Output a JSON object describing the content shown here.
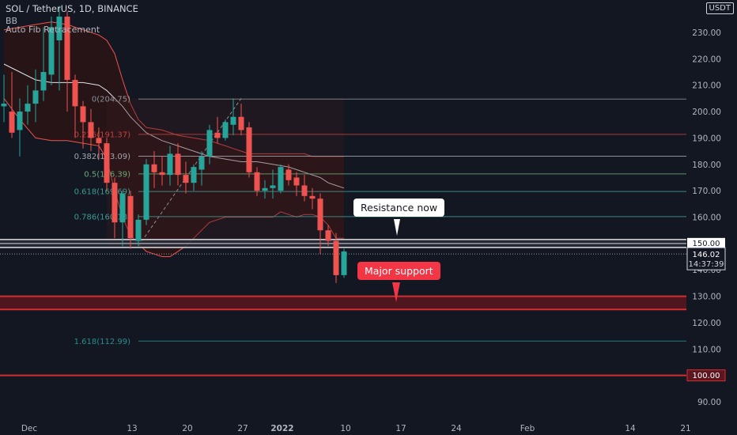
{
  "header": {
    "symbol": "SOL / TetherUS, 1D, BINANCE",
    "indicator_1": "BB",
    "indicator_2": "Auto Fib Retracement"
  },
  "currency_badge": "USDT",
  "callouts": {
    "resistance": "Resistance now",
    "support": "Major support"
  },
  "price_labels": {
    "resistance_level": "150.00",
    "current_price": "146.02",
    "countdown": "14:37:39",
    "support_level": "100.00"
  },
  "colors": {
    "background": "#131722",
    "up": "#26a69a",
    "down": "#ef5350",
    "band_fill": "#2a1416",
    "band_line": "#ef5350",
    "basis": "#e0e3eb",
    "support_zone": "#5c1620",
    "support_line": "#d32f2f",
    "callout_red": "#f23645"
  },
  "chart_data": {
    "type": "candlestick",
    "y_axis": {
      "range": [
        83,
        236
      ],
      "ticks": [
        90,
        100,
        110,
        120,
        130,
        140,
        150,
        160,
        170,
        180,
        190,
        200,
        210,
        220,
        230
      ],
      "tick_labels": [
        "90.00",
        "",
        "110.00",
        "120.00",
        "130.00",
        "140.00",
        "",
        "160.00",
        "170.00",
        "180.00",
        "190.00",
        "200.00",
        "210.00",
        "220.00",
        "230.00"
      ]
    },
    "x_axis": {
      "ticks": [
        {
          "day": -1,
          "label": "Dec",
          "bold": false
        },
        {
          "day": 12,
          "label": "13",
          "bold": false
        },
        {
          "day": 19,
          "label": "20",
          "bold": false
        },
        {
          "day": 26,
          "label": "27",
          "bold": false
        },
        {
          "day": 31,
          "label": "2022",
          "bold": true
        },
        {
          "day": 39,
          "label": "10",
          "bold": false
        },
        {
          "day": 46,
          "label": "17",
          "bold": false
        },
        {
          "day": 53,
          "label": "24",
          "bold": false
        },
        {
          "day": 62,
          "label": "Feb",
          "bold": false
        },
        {
          "day": 75,
          "label": "14",
          "bold": false
        },
        {
          "day": 82,
          "label": "21",
          "bold": false
        }
      ],
      "range": [
        -4,
        84
      ]
    },
    "candles": [
      {
        "day": -4,
        "o": 202,
        "h": 214,
        "l": 196,
        "c": 203
      },
      {
        "day": -3,
        "o": 200,
        "h": 215,
        "l": 190,
        "c": 192
      },
      {
        "day": -2,
        "o": 193,
        "h": 205,
        "l": 183,
        "c": 200
      },
      {
        "day": -1,
        "o": 200,
        "h": 210,
        "l": 195,
        "c": 203
      },
      {
        "day": 0,
        "o": 203,
        "h": 216,
        "l": 196,
        "c": 208
      },
      {
        "day": 1,
        "o": 208,
        "h": 232,
        "l": 204,
        "c": 215
      },
      {
        "day": 2,
        "o": 214,
        "h": 236,
        "l": 210,
        "c": 232
      },
      {
        "day": 3,
        "o": 227,
        "h": 240,
        "l": 208,
        "c": 236
      },
      {
        "day": 4,
        "o": 236,
        "h": 238,
        "l": 200,
        "c": 212
      },
      {
        "day": 5,
        "o": 212,
        "h": 214,
        "l": 190,
        "c": 202
      },
      {
        "day": 6,
        "o": 202,
        "h": 204,
        "l": 186,
        "c": 196
      },
      {
        "day": 7,
        "o": 196,
        "h": 201,
        "l": 185,
        "c": 190
      },
      {
        "day": 8,
        "o": 190,
        "h": 194,
        "l": 182,
        "c": 188
      },
      {
        "day": 9,
        "o": 188,
        "h": 190,
        "l": 170,
        "c": 173
      },
      {
        "day": 10,
        "o": 173,
        "h": 175,
        "l": 152,
        "c": 158
      },
      {
        "day": 11,
        "o": 158,
        "h": 170,
        "l": 149,
        "c": 169
      },
      {
        "day": 12,
        "o": 168,
        "h": 170,
        "l": 148,
        "c": 152
      },
      {
        "day": 13,
        "o": 151,
        "h": 161,
        "l": 149,
        "c": 159
      },
      {
        "day": 14,
        "o": 159,
        "h": 182,
        "l": 157,
        "c": 180
      },
      {
        "day": 15,
        "o": 180,
        "h": 185,
        "l": 171,
        "c": 177
      },
      {
        "day": 16,
        "o": 177,
        "h": 183,
        "l": 172,
        "c": 176
      },
      {
        "day": 17,
        "o": 176,
        "h": 187,
        "l": 172,
        "c": 184
      },
      {
        "day": 18,
        "o": 184,
        "h": 188,
        "l": 172,
        "c": 176
      },
      {
        "day": 19,
        "o": 176,
        "h": 181,
        "l": 169,
        "c": 173
      },
      {
        "day": 20,
        "o": 173,
        "h": 180,
        "l": 170,
        "c": 179
      },
      {
        "day": 21,
        "o": 178,
        "h": 185,
        "l": 172,
        "c": 183
      },
      {
        "day": 22,
        "o": 183,
        "h": 195,
        "l": 180,
        "c": 193
      },
      {
        "day": 23,
        "o": 192,
        "h": 198,
        "l": 188,
        "c": 190
      },
      {
        "day": 24,
        "o": 190,
        "h": 197,
        "l": 189,
        "c": 196
      },
      {
        "day": 25,
        "o": 195,
        "h": 205,
        "l": 191,
        "c": 198
      },
      {
        "day": 26,
        "o": 198,
        "h": 203,
        "l": 191,
        "c": 193
      },
      {
        "day": 27,
        "o": 194,
        "h": 196,
        "l": 175,
        "c": 177
      },
      {
        "day": 28,
        "o": 177,
        "h": 179,
        "l": 168,
        "c": 170
      },
      {
        "day": 29,
        "o": 170,
        "h": 174,
        "l": 167,
        "c": 171
      },
      {
        "day": 30,
        "o": 171,
        "h": 178,
        "l": 167,
        "c": 172
      },
      {
        "day": 31,
        "o": 170,
        "h": 180,
        "l": 169,
        "c": 179
      },
      {
        "day": 32,
        "o": 178,
        "h": 180,
        "l": 172,
        "c": 174
      },
      {
        "day": 33,
        "o": 175,
        "h": 177,
        "l": 168,
        "c": 172
      },
      {
        "day": 34,
        "o": 172,
        "h": 176,
        "l": 166,
        "c": 168
      },
      {
        "day": 35,
        "o": 168,
        "h": 171,
        "l": 163,
        "c": 167
      },
      {
        "day": 36,
        "o": 167,
        "h": 169,
        "l": 146,
        "c": 155
      },
      {
        "day": 37,
        "o": 155,
        "h": 157,
        "l": 149,
        "c": 151
      },
      {
        "day": 38,
        "o": 151,
        "h": 154,
        "l": 135,
        "c": 138
      },
      {
        "day": 39,
        "o": 138,
        "h": 148,
        "l": 137,
        "c": 147
      }
    ],
    "bollinger": {
      "upper": [
        [
          -4,
          231
        ],
        [
          0,
          233
        ],
        [
          2,
          234
        ],
        [
          4,
          233
        ],
        [
          6,
          231
        ],
        [
          8,
          229
        ],
        [
          9,
          227
        ],
        [
          10,
          222
        ],
        [
          11,
          212
        ],
        [
          12,
          203
        ],
        [
          13,
          197
        ],
        [
          14,
          194
        ],
        [
          16,
          193
        ],
        [
          18,
          191
        ],
        [
          20,
          190
        ],
        [
          22,
          189
        ],
        [
          23,
          188
        ],
        [
          24,
          187
        ],
        [
          25,
          186
        ],
        [
          26,
          185
        ],
        [
          27,
          184
        ],
        [
          28,
          184
        ],
        [
          29,
          184
        ],
        [
          30,
          184
        ],
        [
          31,
          184
        ],
        [
          32,
          184
        ],
        [
          33,
          184
        ],
        [
          34,
          184
        ],
        [
          35,
          183
        ],
        [
          36,
          183
        ],
        [
          37,
          183
        ],
        [
          38,
          183
        ],
        [
          39,
          183
        ]
      ],
      "basis": [
        [
          -4,
          218
        ],
        [
          -2,
          215
        ],
        [
          0,
          212
        ],
        [
          2,
          211
        ],
        [
          4,
          211
        ],
        [
          6,
          211
        ],
        [
          8,
          210
        ],
        [
          9,
          208
        ],
        [
          10,
          205
        ],
        [
          11,
          202
        ],
        [
          12,
          198
        ],
        [
          13,
          195
        ],
        [
          14,
          192
        ],
        [
          16,
          189
        ],
        [
          18,
          187
        ],
        [
          20,
          185
        ],
        [
          22,
          183
        ],
        [
          24,
          182
        ],
        [
          26,
          181
        ],
        [
          28,
          181
        ],
        [
          30,
          180
        ],
        [
          32,
          179
        ],
        [
          34,
          177
        ],
        [
          36,
          175
        ],
        [
          37,
          173
        ],
        [
          38,
          172
        ],
        [
          39,
          171
        ]
      ],
      "lower": [
        [
          -4,
          205
        ],
        [
          -2,
          197
        ],
        [
          0,
          190
        ],
        [
          2,
          189
        ],
        [
          4,
          189
        ],
        [
          6,
          188
        ],
        [
          8,
          187
        ],
        [
          9,
          182
        ],
        [
          10,
          170
        ],
        [
          11,
          160
        ],
        [
          12,
          153
        ],
        [
          13,
          150
        ],
        [
          14,
          147
        ],
        [
          15,
          146
        ],
        [
          16,
          145
        ],
        [
          17,
          145
        ],
        [
          18,
          147
        ],
        [
          19,
          149
        ],
        [
          20,
          152
        ],
        [
          21,
          155
        ],
        [
          22,
          158
        ],
        [
          23,
          159
        ],
        [
          24,
          160
        ],
        [
          25,
          160
        ],
        [
          26,
          160
        ],
        [
          27,
          160
        ],
        [
          28,
          160
        ],
        [
          29,
          160
        ],
        [
          30,
          160
        ],
        [
          31,
          162
        ],
        [
          32,
          161
        ],
        [
          33,
          160
        ],
        [
          34,
          161
        ],
        [
          35,
          161
        ],
        [
          36,
          160
        ],
        [
          37,
          157
        ],
        [
          38,
          152
        ],
        [
          39,
          152
        ]
      ]
    },
    "fib_anchor": {
      "from": {
        "day": 13,
        "price": 149.0
      },
      "to": {
        "day": 26,
        "price": 205.0
      }
    },
    "fib_levels": [
      {
        "ratio": 0,
        "price": 204.75,
        "label": "0(204.75)",
        "color": "#8c9196"
      },
      {
        "ratio": 0.236,
        "price": 191.37,
        "label": "0.236(191.37)",
        "color": "#c2413d"
      },
      {
        "ratio": 0.382,
        "price": 183.09,
        "label": "0.382(183.09)",
        "color": "#a3a6ad"
      },
      {
        "ratio": 0.5,
        "price": 176.39,
        "label": "0.5(176.39)",
        "color": "#6aa878"
      },
      {
        "ratio": 0.618,
        "price": 169.69,
        "label": "0.618(169.69)",
        "color": "#3d9b92"
      },
      {
        "ratio": 0.786,
        "price": 160.18,
        "label": "0.786(160.18)",
        "color": "#3d9b92"
      },
      {
        "ratio": 1.618,
        "price": 112.99,
        "label": "1.618(112.99)",
        "color": "#2a8c8c"
      }
    ],
    "resistance": 150.0,
    "current_price": 146.02,
    "support_zone": [
      125.0,
      130.0
    ],
    "support_line": 100.0
  }
}
